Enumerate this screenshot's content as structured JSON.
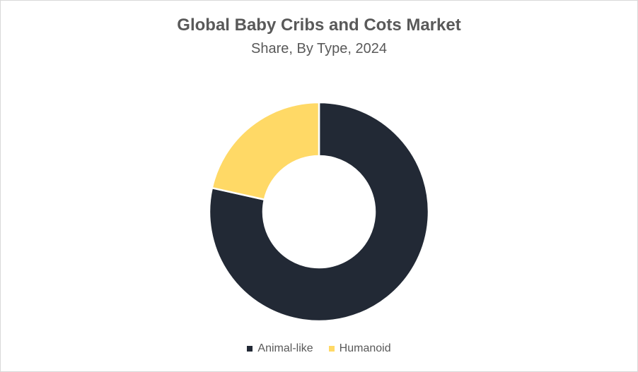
{
  "chart_data": {
    "type": "pie",
    "variant": "donut",
    "title": "Global Baby Cribs and Cots Market",
    "subtitle": "Share, By Type, 2024",
    "categories": [
      "Animal-like",
      "Humanoid"
    ],
    "values": [
      78.5,
      21.5
    ],
    "colors": [
      "#222935",
      "#FFD966"
    ],
    "legend_position": "bottom",
    "data_labels": false
  }
}
